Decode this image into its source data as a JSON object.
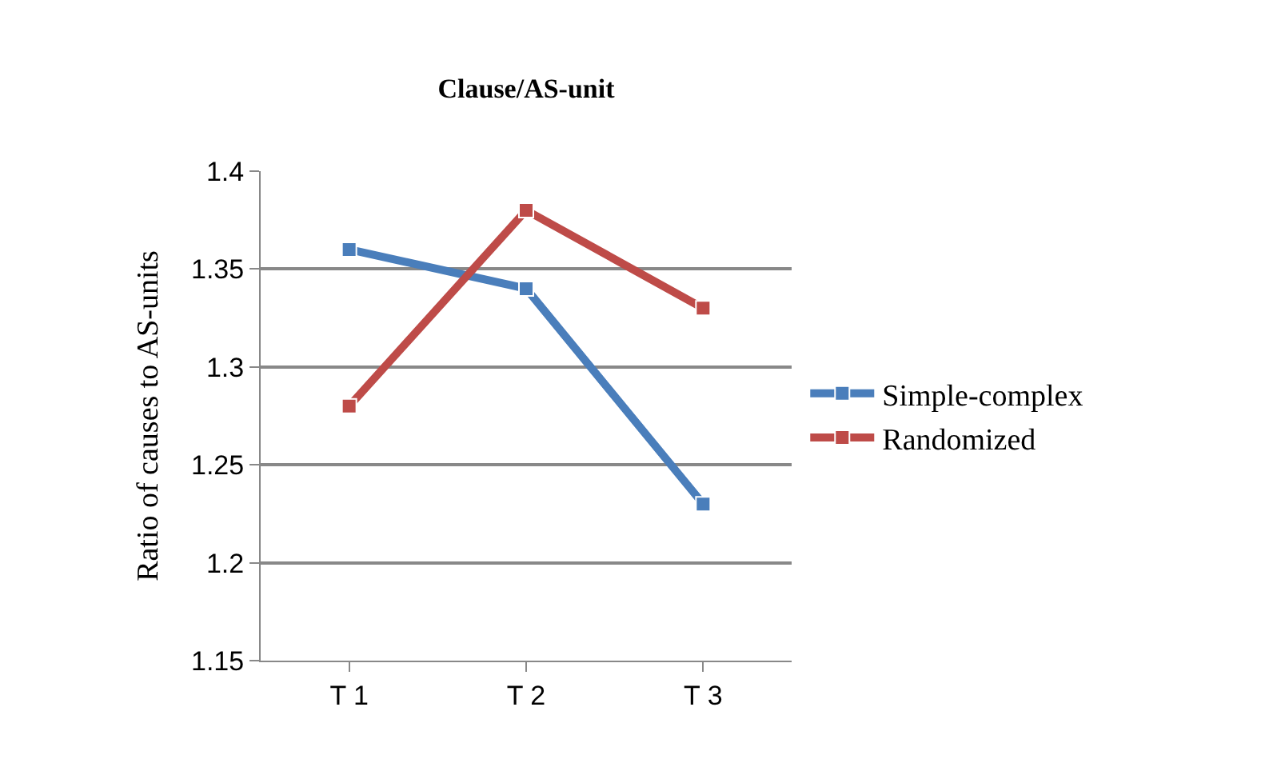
{
  "chart_data": {
    "type": "line",
    "title": "Clause/AS-unit",
    "ylabel": "Ratio of causes to AS-units",
    "categories": [
      "T 1",
      "T 2",
      "T 3"
    ],
    "series": [
      {
        "name": "Simple-complex",
        "color": "#4a7ebb",
        "values": [
          1.36,
          1.34,
          1.23
        ]
      },
      {
        "name": "Randomized",
        "color": "#be4b48",
        "values": [
          1.28,
          1.38,
          1.33
        ]
      }
    ],
    "ylim": [
      1.15,
      1.4
    ],
    "yticks": [
      1.15,
      1.2,
      1.25,
      1.3,
      1.35,
      1.4
    ],
    "grid": "y",
    "legend": "right",
    "marker": "square",
    "line_style": "solid"
  }
}
